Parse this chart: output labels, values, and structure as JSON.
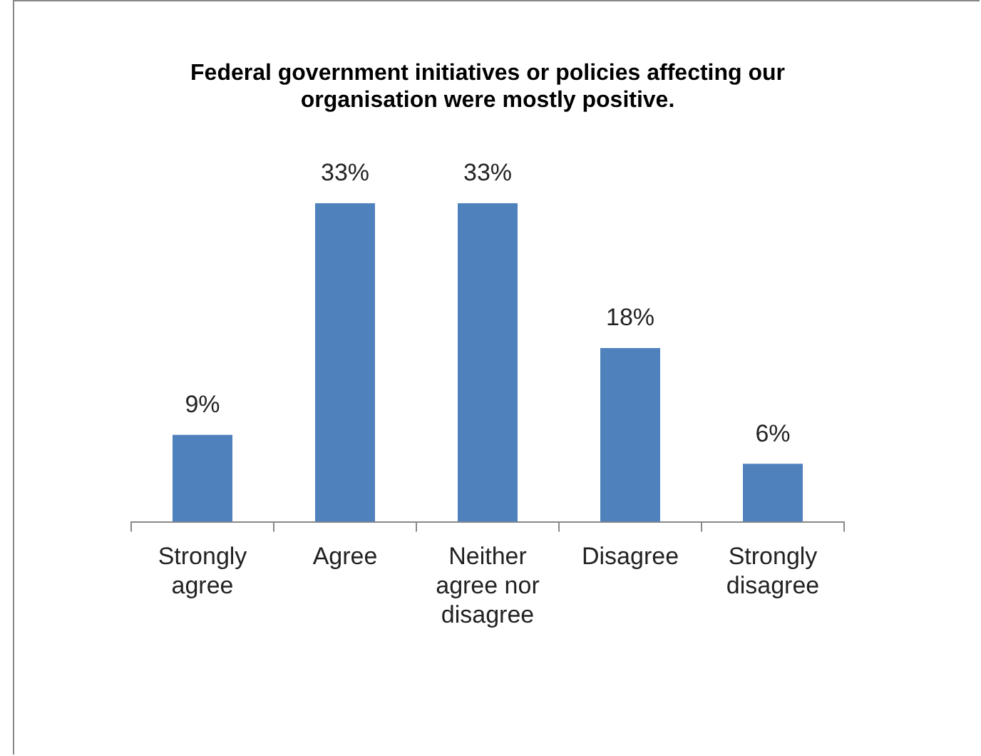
{
  "chart_data": {
    "type": "bar",
    "title": "Federal government initiatives or policies affecting our organisation were mostly positive.",
    "categories": [
      "Strongly agree",
      "Agree",
      "Neither agree nor disagree",
      "Disagree",
      "Strongly disagree"
    ],
    "values": [
      9,
      33,
      33,
      18,
      6
    ],
    "value_labels": [
      "9%",
      "33%",
      "33%",
      "18%",
      "6%"
    ],
    "color": "#4f81bd",
    "grid": false,
    "legend": false
  }
}
